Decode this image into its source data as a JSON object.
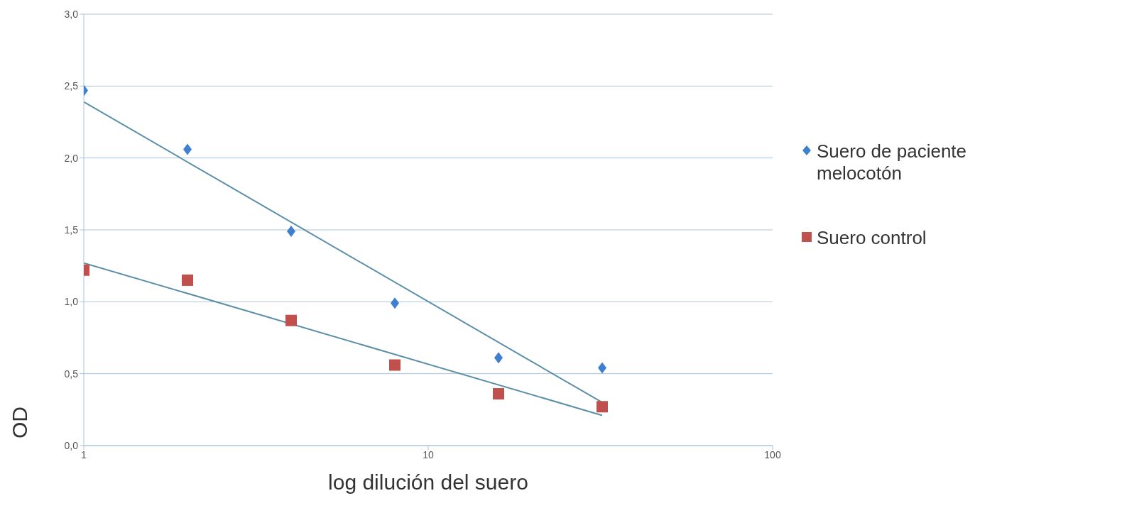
{
  "chart_data": {
    "type": "scatter",
    "ylabel": "OD",
    "xlabel": "log dilución del suero",
    "log": "x",
    "xlim": [
      1,
      100
    ],
    "xticks": [
      1,
      10,
      100
    ],
    "ylim": [
      0,
      3
    ],
    "yticks": [
      {
        "value": 0,
        "label": "0,0"
      },
      {
        "value": 0.5,
        "label": "0,5"
      },
      {
        "value": 1,
        "label": "1,0"
      },
      {
        "value": 1.5,
        "label": "1,5"
      },
      {
        "value": 2,
        "label": "2,0"
      },
      {
        "value": 2.5,
        "label": "2,5"
      },
      {
        "value": 3,
        "label": "3,0"
      }
    ],
    "grid": "y",
    "legend": "right",
    "series": [
      {
        "name": "Suero de paciente melocotón",
        "color": "#3f7fd0",
        "marker": "diamond",
        "x": [
          1,
          2,
          4,
          8,
          16,
          32
        ],
        "values": [
          2.47,
          2.06,
          1.49,
          0.99,
          0.61,
          0.54
        ]
      },
      {
        "name": "Suero control",
        "color": "#c0504d",
        "marker": "square",
        "x": [
          1,
          2,
          4,
          8,
          16,
          32
        ],
        "values": [
          1.22,
          1.15,
          0.87,
          0.56,
          0.36,
          0.27
        ]
      },
      {
        "type": "line",
        "color": "#5b8fa8",
        "x": [
          1,
          32
        ],
        "values": [
          2.39,
          0.3
        ]
      },
      {
        "type": "line",
        "color": "#5b8fa8",
        "x": [
          1,
          32
        ],
        "values": [
          1.27,
          0.21
        ]
      }
    ]
  }
}
